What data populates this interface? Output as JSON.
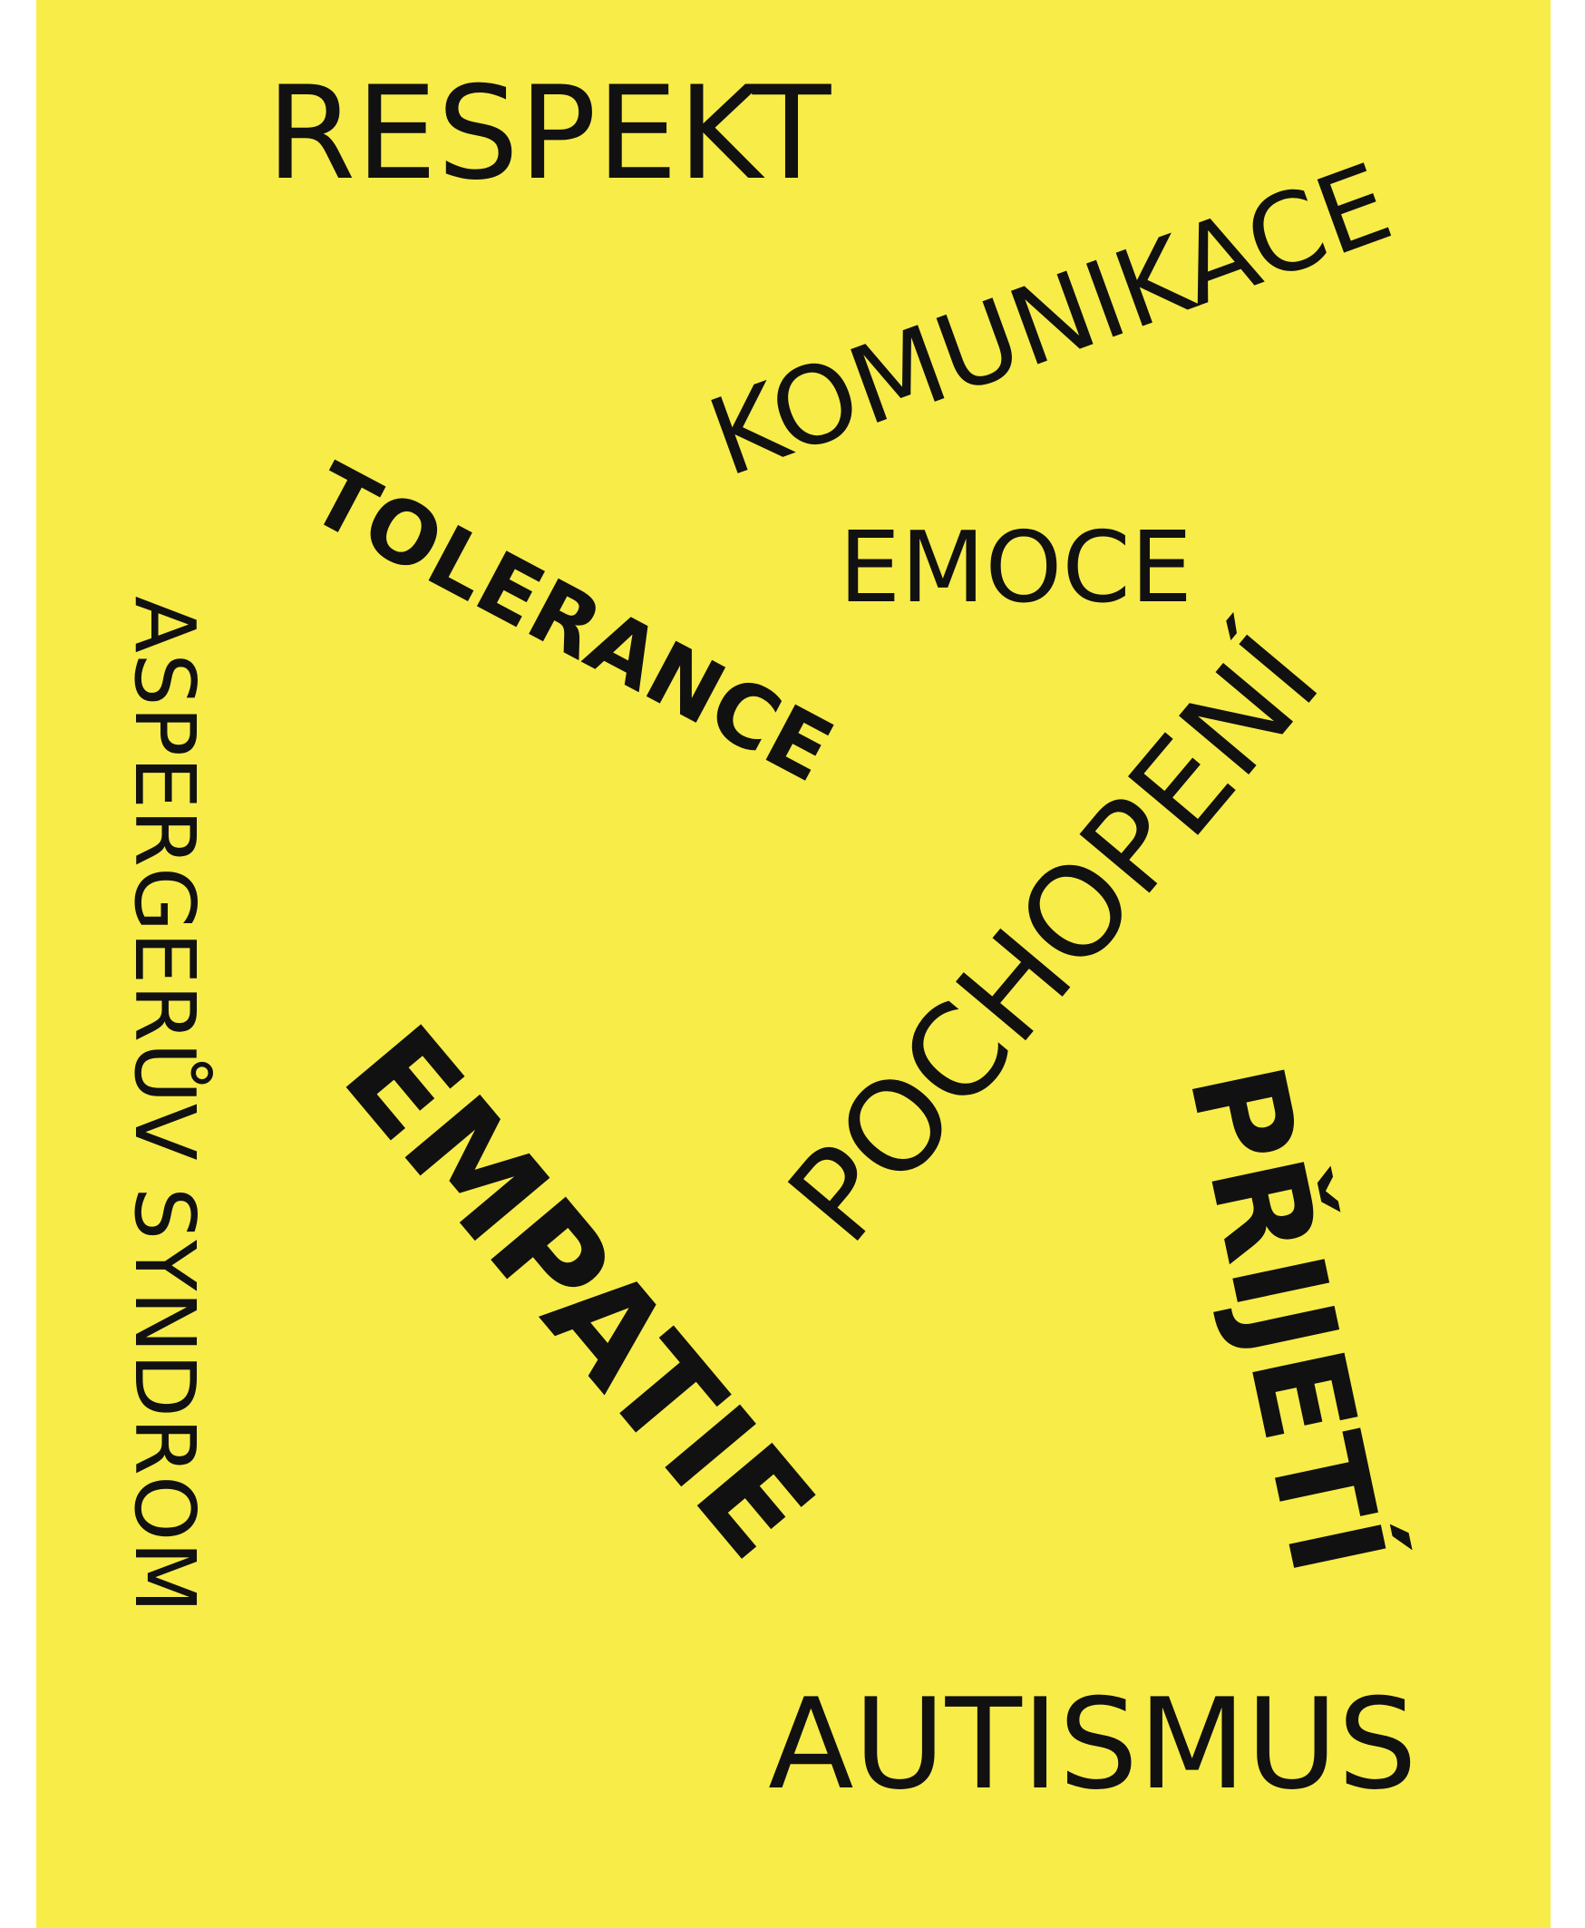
{
  "colors": {
    "background": "#f8ec48",
    "text": "#111111",
    "margin": "#ffffff"
  },
  "words": {
    "respekt": "RESPEKT",
    "komunikace": "KOMUNIKACE",
    "emoce": "EMOCE",
    "tolerance": "TOLERANCE",
    "asperger": "ASPERGERŮV SYNDROM",
    "pochopeni": "POCHOPENÍ",
    "empatie": "EMPATIE",
    "prijeti": "PŘIJETÍ",
    "autismus": "AUTISMUS"
  }
}
